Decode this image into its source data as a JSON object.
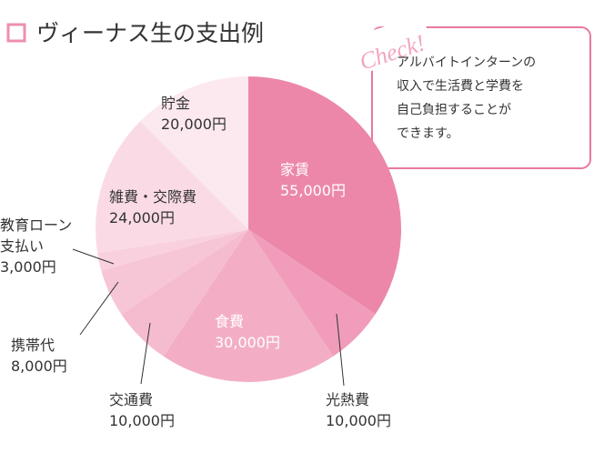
{
  "chart_data": {
    "type": "pie",
    "title": "ヴィーナス生の支出例",
    "categories": [
      "家賃",
      "光熱費",
      "食費",
      "交通費",
      "携帯代",
      "教育ローン支払い",
      "雑費・交際費",
      "貯金"
    ],
    "values": [
      55000,
      10000,
      30000,
      10000,
      8000,
      3000,
      24000,
      20000
    ],
    "value_labels": [
      "55,000円",
      "10,000円",
      "30,000円",
      "10,000円",
      "8,000円",
      "3,000円",
      "24,000円",
      "20,000円"
    ],
    "colors": [
      "#ec87aa",
      "#f09cba",
      "#f3aec6",
      "#f5bccf",
      "#f7c6d6",
      "#f9d1de",
      "#fadbe5",
      "#fce9ef"
    ]
  },
  "note": {
    "heading": "Check!",
    "lines": [
      "アルバイトインターンの",
      "収入で生活費と学費を",
      "自己負担することが",
      "できます。"
    ]
  }
}
